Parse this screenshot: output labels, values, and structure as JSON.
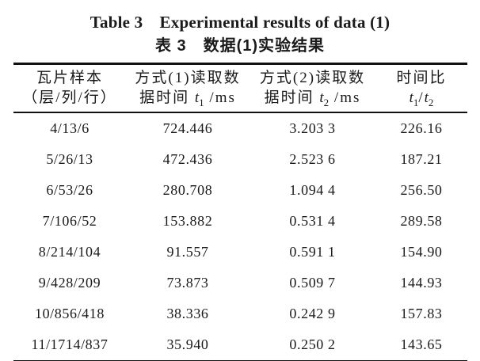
{
  "titles": {
    "english": "Table 3　Experimental results of data (1)",
    "chinese": "表 3　数据(1)实验结果"
  },
  "table": {
    "headers": [
      {
        "line1": "瓦片样本",
        "line2": "（层/列/行）"
      },
      {
        "line1": "方式(1)读取数",
        "prefix": "据时间 ",
        "var": "t",
        "sub": "1",
        "suffix": " /ms"
      },
      {
        "line1": "方式(2)读取数",
        "prefix": "据时间 ",
        "var": "t",
        "sub": "2",
        "suffix": " /ms"
      },
      {
        "line1": "时间比",
        "var1": "t",
        "sub1": "1",
        "slash": "/",
        "var2": "t",
        "sub2": "2"
      }
    ],
    "rows": [
      [
        "4/13/6",
        "724.446",
        "3.203 3",
        "226.16"
      ],
      [
        "5/26/13",
        "472.436",
        "2.523 6",
        "187.21"
      ],
      [
        "6/53/26",
        "280.708",
        "1.094 4",
        "256.50"
      ],
      [
        "7/106/52",
        "153.882",
        "0.531 4",
        "289.58"
      ],
      [
        "8/214/104",
        "91.557",
        "0.591 1",
        "154.90"
      ],
      [
        "9/428/209",
        "73.873",
        "0.509 7",
        "144.93"
      ],
      [
        "10/856/418",
        "38.336",
        "0.242 9",
        "157.83"
      ],
      [
        "11/1714/837",
        "35.940",
        "0.250 2",
        "143.65"
      ]
    ]
  },
  "colors": {
    "background": "#ffffff",
    "text": "#1a1a1a",
    "rule": "#111111"
  }
}
